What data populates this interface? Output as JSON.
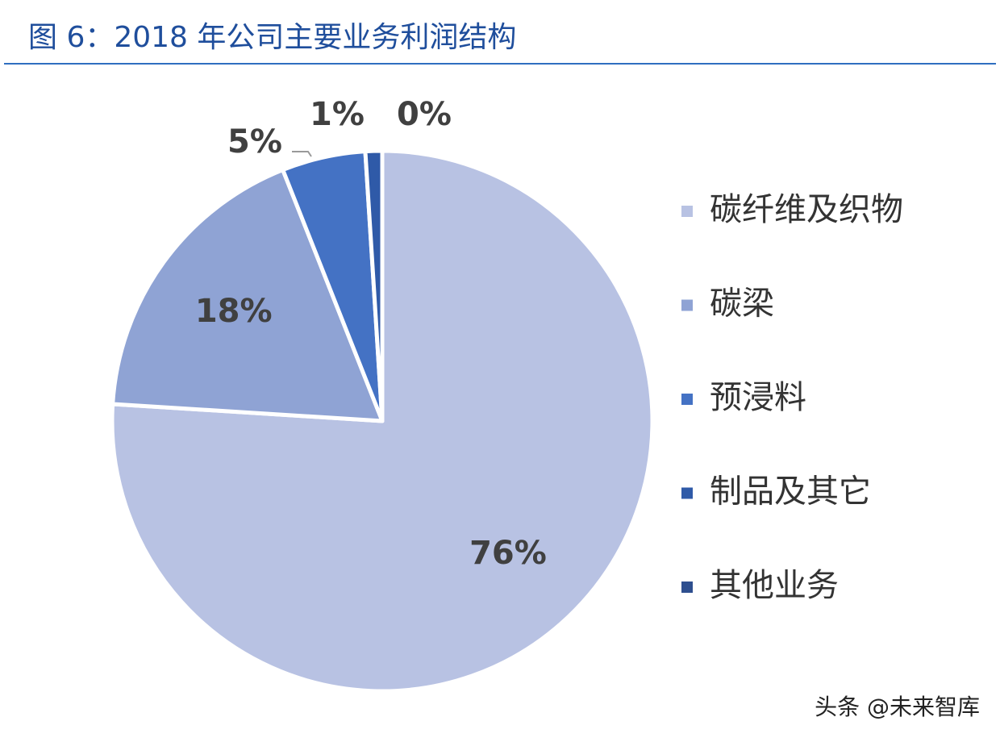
{
  "chart_data": {
    "type": "pie",
    "title": "图 6：2018 年公司主要业务利润结构",
    "categories": [
      "碳纤维及织物",
      "碳梁",
      "预浸料",
      "制品及其它",
      "其他业务"
    ],
    "values": [
      76,
      18,
      5,
      1,
      0
    ],
    "value_labels": [
      "76%",
      "18%",
      "5%",
      "1%",
      "0%"
    ],
    "colors": [
      "#b8c2e3",
      "#8fa3d4",
      "#4472c4",
      "#2f5aa8",
      "#2e4f8f"
    ],
    "legend": "right",
    "watermark": "头条 @未来智库"
  }
}
